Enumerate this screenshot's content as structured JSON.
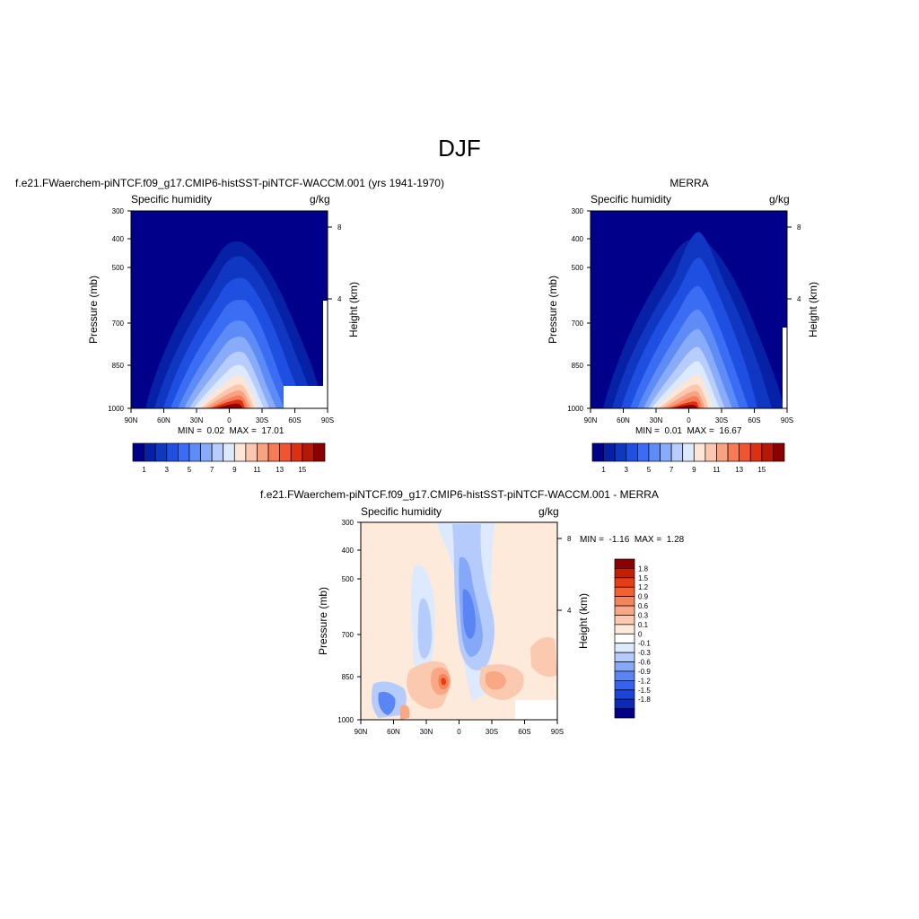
{
  "page": {
    "title": "DJF",
    "field_label": "Specific humidity",
    "units": "g/kg",
    "left_axis_label": "Pressure (mb)",
    "right_axis_label": "Height (km)"
  },
  "axes": {
    "pressure_ticks": [
      "300",
      "400",
      "500",
      "700",
      "850",
      "1000"
    ],
    "height_ticks": [
      "8",
      "4"
    ],
    "latitude_ticks": [
      "90N",
      "60N",
      "30N",
      "0",
      "30S",
      "60S",
      "90S"
    ]
  },
  "panels": {
    "model": {
      "title": "f.e21.FWaerchem-piNTCF.f09_g17.CMIP6-histSST-piNTCF-WACCM.001 (yrs 1941-1970)",
      "min_label": "MIN =",
      "min_value": "0.02",
      "max_label": "MAX =",
      "max_value": "17.01"
    },
    "obs": {
      "title": "MERRA",
      "min_label": "MIN =",
      "min_value": "0.01",
      "max_label": "MAX =",
      "max_value": "16.67"
    },
    "diff": {
      "title": "f.e21.FWaerchem-piNTCF.f09_g17.CMIP6-histSST-piNTCF-WACCM.001 - MERRA",
      "min_label": "MIN =",
      "min_value": "-1.16",
      "max_label": "MAX =",
      "max_value": "1.28"
    }
  },
  "colorbars": {
    "absolute": {
      "colors": [
        "#00008b",
        "#0621a6",
        "#1037c2",
        "#1e4fe0",
        "#3a6cf4",
        "#5e8cf7",
        "#89acfa",
        "#b6cdfd",
        "#ddeafe",
        "#fde6d8",
        "#fbc7ae",
        "#f9a281",
        "#f67c56",
        "#f25430",
        "#dd3013",
        "#b81708",
        "#8b0000"
      ],
      "labels": [
        "1",
        "3",
        "5",
        "7",
        "9",
        "11",
        "13",
        "15"
      ]
    },
    "difference": {
      "colors": [
        "#8b0000",
        "#c41f05",
        "#e83c14",
        "#f4602f",
        "#f6845a",
        "#f9a885",
        "#fbc9b0",
        "#feeadb",
        "#ffffff",
        "#dde9fe",
        "#b4cbfc",
        "#86a8f8",
        "#5a86f5",
        "#3563ef",
        "#1a44da",
        "#0c2ab7",
        "#00008b"
      ],
      "labels": [
        "1.8",
        "1.5",
        "1.2",
        "0.9",
        "0.6",
        "0.3",
        "0.1",
        "0",
        "-0.1",
        "-0.3",
        "-0.6",
        "-0.9",
        "-1.2",
        "-1.5",
        "-1.8"
      ]
    }
  },
  "chart_data": [
    {
      "type": "heatmap",
      "title": "f.e21.FWaerchem-piNTCF.f09_g17.CMIP6-histSST-piNTCF-WACCM.001 (yrs 1941-1970)",
      "xlabel": "",
      "ylabel": "Pressure (mb)",
      "y2label": "Height (km)",
      "x_ticks": [
        "90N",
        "60N",
        "30N",
        "0",
        "30S",
        "60S",
        "90S"
      ],
      "y_ticks": [
        300,
        400,
        500,
        700,
        850,
        1000
      ],
      "xlim": [
        90,
        -90
      ],
      "ylim": [
        1000,
        300
      ],
      "y_scale": "log",
      "levels": [
        1,
        3,
        5,
        7,
        9,
        11,
        13,
        15
      ],
      "min": 0.02,
      "max": 17.01,
      "units": "g/kg"
    },
    {
      "type": "heatmap",
      "title": "MERRA",
      "xlabel": "",
      "ylabel": "Pressure (mb)",
      "y2label": "Height (km)",
      "x_ticks": [
        "90N",
        "60N",
        "30N",
        "0",
        "30S",
        "60S",
        "90S"
      ],
      "y_ticks": [
        300,
        400,
        500,
        700,
        850,
        1000
      ],
      "xlim": [
        90,
        -90
      ],
      "ylim": [
        1000,
        300
      ],
      "y_scale": "log",
      "levels": [
        1,
        3,
        5,
        7,
        9,
        11,
        13,
        15
      ],
      "min": 0.01,
      "max": 16.67,
      "units": "g/kg"
    },
    {
      "type": "heatmap",
      "title": "f.e21.FWaerchem-piNTCF.f09_g17.CMIP6-histSST-piNTCF-WACCM.001 - MERRA",
      "xlabel": "",
      "ylabel": "Pressure (mb)",
      "y2label": "Height (km)",
      "x_ticks": [
        "90N",
        "60N",
        "30N",
        "0",
        "30S",
        "60S",
        "90S"
      ],
      "y_ticks": [
        300,
        400,
        500,
        700,
        850,
        1000
      ],
      "xlim": [
        90,
        -90
      ],
      "ylim": [
        1000,
        300
      ],
      "y_scale": "log",
      "levels": [
        -1.8,
        -1.5,
        -1.2,
        -0.9,
        -0.6,
        -0.3,
        -0.1,
        0,
        0.1,
        0.3,
        0.6,
        0.9,
        1.2,
        1.5,
        1.8
      ],
      "min": -1.16,
      "max": 1.28,
      "units": "g/kg"
    }
  ]
}
